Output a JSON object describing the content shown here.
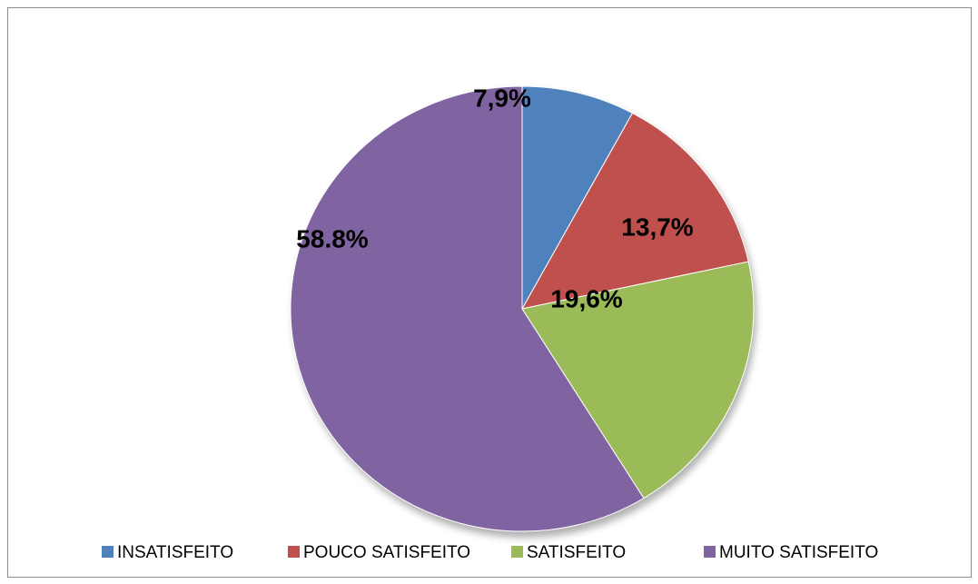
{
  "chart_data": {
    "type": "pie",
    "categories": [
      "INSATISFEITO",
      "POUCO SATISFEITO",
      "SATISFEITO",
      "MUITO SATISFEITO"
    ],
    "values": [
      7.9,
      13.7,
      19.6,
      58.8
    ],
    "value_labels": [
      "7,9%",
      "13,7%",
      "19,6%",
      "58.8%"
    ],
    "colors": [
      "#4f81bd",
      "#c0504d",
      "#9bbb59",
      "#8064a2"
    ],
    "legend": "bottom"
  }
}
